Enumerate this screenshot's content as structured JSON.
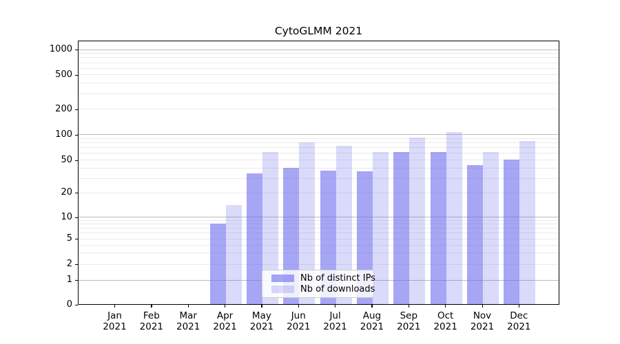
{
  "figure": {
    "title": "CytoGLMM 2021"
  },
  "colors": {
    "bar_ips": "#a6a6f5",
    "bar_ips_rgba": "rgba(102,102,238,0.58)",
    "bar_downloads": "#d9d9fa",
    "bar_downloads_rgba": "rgba(102,102,238,0.24)",
    "major_grid": "#bbbbbb",
    "minor_grid": "#eaeaea",
    "axis": "#000000",
    "legend_border": "#cbcbcb",
    "background": "#ffffff"
  },
  "chart_data": {
    "type": "bar",
    "title": "CytoGLMM 2021",
    "categories": [
      "Jan 2021",
      "Feb 2021",
      "Mar 2021",
      "Apr 2021",
      "May 2021",
      "Jun 2021",
      "Jul 2021",
      "Aug 2021",
      "Sep 2021",
      "Oct 2021",
      "Nov 2021",
      "Dec 2021"
    ],
    "x": {
      "months": [
        "Jan",
        "Feb",
        "Mar",
        "Apr",
        "May",
        "Jun",
        "Jul",
        "Aug",
        "Sep",
        "Oct",
        "Nov",
        "Dec"
      ],
      "year": "2021"
    },
    "series": [
      {
        "name": "Nb of distinct IPs",
        "key": "ips",
        "values": [
          0,
          0,
          0,
          8,
          34,
          40,
          37,
          36,
          61,
          61,
          43,
          50
        ]
      },
      {
        "name": "Nb of downloads",
        "key": "downloads",
        "values": [
          0,
          0,
          0,
          14,
          61,
          80,
          73,
          61,
          91,
          105,
          62,
          83
        ]
      }
    ],
    "xlabel": "",
    "ylabel": "",
    "y_axis": {
      "scale": "symlog",
      "tick_values": [
        0,
        1,
        2,
        5,
        10,
        20,
        50,
        100,
        200,
        500,
        1000
      ],
      "tick_labels": [
        "0",
        "1",
        "2",
        "5",
        "10",
        "20",
        "50",
        "100",
        "200",
        "500",
        "1000"
      ],
      "major_gridline_values": [
        1,
        10,
        100,
        1000
      ],
      "minor_gridline_values": [
        2,
        3,
        4,
        5,
        6,
        7,
        8,
        9,
        20,
        30,
        40,
        50,
        60,
        70,
        80,
        90,
        200,
        300,
        400,
        500,
        600,
        700,
        800,
        900
      ],
      "ylim": [
        0,
        1280
      ]
    },
    "grid": "on",
    "legend_position": "lower center",
    "legend_items": [
      "Nb of distinct IPs",
      "Nb of downloads"
    ]
  }
}
